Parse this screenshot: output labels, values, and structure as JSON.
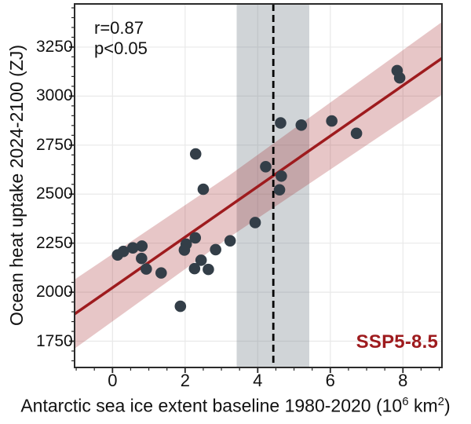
{
  "annotation": {
    "line1": "r=0.87",
    "line2": "p<0.05"
  },
  "scenario_label": "SSP5-8.5",
  "x_axis_label": {
    "part1": "Antarctic sea ice extent baseline 1980-2020 (10",
    "sup1": "6",
    "part2": " km",
    "sup2": "2",
    "part3": ")"
  },
  "y_axis_label": "Ocean heat uptake 2024-2100 (ZJ)",
  "chart_data": {
    "type": "scatter",
    "title": "",
    "xlabel": "Antarctic sea ice extent baseline 1980-2020 (10^6 km^2)",
    "ylabel": "Ocean heat uptake 2024-2100 (ZJ)",
    "xlim": [
      -1.045,
      9.075
    ],
    "ylim": [
      1616,
      3470
    ],
    "x_ticks": [
      0,
      2,
      4,
      6,
      8
    ],
    "y_ticks": [
      1750,
      2000,
      2250,
      2500,
      2750,
      3000,
      3250
    ],
    "x_minor": {
      "start": -1.0,
      "end": 9.0,
      "step": 0.5
    },
    "y_minor": {
      "start": 1650,
      "end": 3450,
      "step": 50
    },
    "grid": true,
    "legend": "none",
    "stats": {
      "r": 0.87,
      "p": "<0.05"
    },
    "points": [
      [
        0.14,
        2190
      ],
      [
        0.3,
        2208
      ],
      [
        0.56,
        2226
      ],
      [
        0.81,
        2235
      ],
      [
        0.8,
        2172
      ],
      [
        0.93,
        2118
      ],
      [
        1.34,
        2098
      ],
      [
        1.87,
        1928
      ],
      [
        1.98,
        2215
      ],
      [
        2.03,
        2245
      ],
      [
        2.28,
        2277
      ],
      [
        2.29,
        2705
      ],
      [
        2.26,
        2120
      ],
      [
        2.5,
        2525
      ],
      [
        2.44,
        2163
      ],
      [
        2.64,
        2116
      ],
      [
        2.84,
        2217
      ],
      [
        3.24,
        2262
      ],
      [
        3.93,
        2355
      ],
      [
        4.22,
        2640
      ],
      [
        4.63,
        2863
      ],
      [
        4.65,
        2592
      ],
      [
        4.6,
        2522
      ],
      [
        5.2,
        2852
      ],
      [
        6.04,
        2873
      ],
      [
        6.72,
        2810
      ],
      [
        7.84,
        3130
      ],
      [
        7.91,
        3093
      ]
    ],
    "point_radius": 7.3,
    "regression": {
      "intercept": 2023,
      "slope": 128.9,
      "ci_x": [
        -1.045,
        3.2,
        9.075
      ],
      "ci_halfwidth": [
        176,
        158,
        185
      ]
    },
    "obs_band": {
      "x0": 3.42,
      "x1": 5.42
    },
    "obs_mean_x": 4.43,
    "colors": {
      "point": "#333e48",
      "regression_line": "#9e1b1e",
      "ci_band": "rgba(158,27,30,0.25)",
      "obs_band": "rgba(110,120,130,0.32)",
      "obs_mean_line": "#000000",
      "grid": "#e9e9e9",
      "spine": "#2b2b2b",
      "tick": "#262626",
      "scenario_text": "#9e1b1e"
    }
  }
}
